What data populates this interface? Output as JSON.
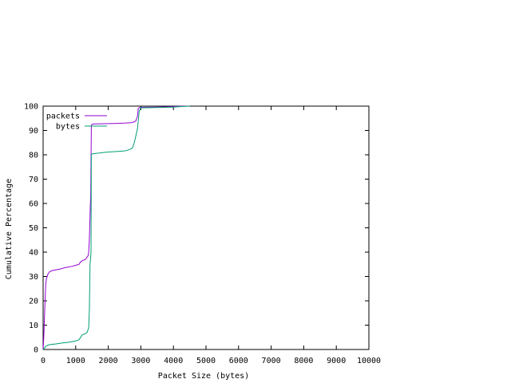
{
  "chart_data": {
    "type": "line",
    "title": "",
    "xlabel": "Packet Size (bytes)",
    "ylabel": "Cumulative Percentage",
    "xlim": [
      0,
      10000
    ],
    "ylim": [
      0,
      100
    ],
    "xticks": [
      0,
      1000,
      2000,
      3000,
      4000,
      5000,
      6000,
      7000,
      8000,
      9000,
      10000
    ],
    "yticks": [
      0,
      10,
      20,
      30,
      40,
      50,
      60,
      70,
      80,
      90,
      100
    ],
    "grid": false,
    "legend_position": "top-left",
    "series": [
      {
        "name": "packets",
        "color": "#9400d3",
        "x": [
          0,
          20,
          40,
          60,
          80,
          100,
          150,
          200,
          300,
          500,
          700,
          900,
          1000,
          1100,
          1150,
          1200,
          1300,
          1350,
          1380,
          1400,
          1420,
          1450,
          1460,
          1480,
          1490,
          1500,
          1520,
          1600,
          1900,
          2200,
          2500,
          2700,
          2800,
          2850,
          2900,
          2920,
          2950,
          3000,
          3500,
          3800,
          4000,
          4200,
          4500
        ],
        "y": [
          0,
          5,
          12,
          20,
          27,
          29,
          31,
          32,
          32.5,
          33,
          33.7,
          34.2,
          34.6,
          35,
          36,
          36.5,
          37,
          38,
          38.5,
          40,
          45,
          60,
          62,
          92,
          92.3,
          92.5,
          92.6,
          92.7,
          92.8,
          92.9,
          93,
          93.2,
          93.5,
          94,
          96,
          99,
          99.4,
          99.5,
          99.6,
          99.7,
          99.8,
          99.9,
          100
        ]
      },
      {
        "name": "bytes",
        "color": "#009e73",
        "x": [
          0,
          100,
          200,
          400,
          600,
          800,
          1000,
          1100,
          1150,
          1200,
          1300,
          1350,
          1400,
          1420,
          1440,
          1460,
          1470,
          1480,
          1490,
          1500,
          1550,
          1700,
          1900,
          2100,
          2300,
          2500,
          2600,
          2700,
          2750,
          2800,
          2850,
          2900,
          2950,
          3000,
          3500,
          3800,
          4000,
          4200,
          4500
        ],
        "y": [
          0,
          1.5,
          2,
          2.3,
          2.7,
          3,
          3.5,
          4,
          5,
          6,
          6.5,
          7,
          9,
          16,
          35,
          38,
          40,
          80,
          80.2,
          80.3,
          80.5,
          80.7,
          81,
          81.2,
          81.4,
          81.6,
          81.9,
          82.5,
          83,
          85,
          88,
          91,
          98,
          99.3,
          99.4,
          99.5,
          99.6,
          99.8,
          100
        ]
      }
    ]
  }
}
